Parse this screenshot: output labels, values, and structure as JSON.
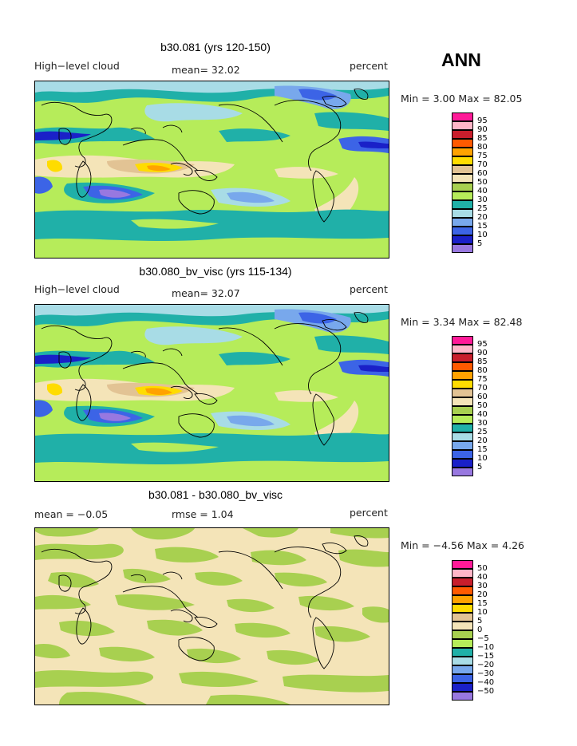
{
  "season": "ANN",
  "panels": [
    {
      "title": "b30.081 (yrs 120-150)",
      "left_label": "High−level cloud",
      "center_label": "mean=  32.02",
      "right_label": "percent",
      "minmax": "Min =    3.00 Max =   82.05",
      "colorbar": {
        "labels": [
          "95",
          "90",
          "85",
          "80",
          "75",
          "70",
          "60",
          "50",
          "40",
          "30",
          "25",
          "20",
          "15",
          "10",
          "5"
        ],
        "colors": [
          "#ff1a98",
          "#ffb6c8",
          "#c81e2c",
          "#ff5a00",
          "#ffa200",
          "#ffdc00",
          "#e2c394",
          "#f4e4b8",
          "#a8d050",
          "#b6ec5a",
          "#20b0a8",
          "#a8dce6",
          "#78a8ec",
          "#3c64e6",
          "#1a20c8",
          "#9878e0"
        ]
      }
    },
    {
      "title": "b30.080_bv_visc (yrs 115-134)",
      "left_label": "High−level cloud",
      "center_label": "mean=  32.07",
      "right_label": "percent",
      "minmax": "Min =    3.34 Max =   82.48",
      "colorbar": {
        "labels": [
          "95",
          "90",
          "85",
          "80",
          "75",
          "70",
          "60",
          "50",
          "40",
          "30",
          "25",
          "20",
          "15",
          "10",
          "5"
        ],
        "colors": [
          "#ff1a98",
          "#ffb6c8",
          "#c81e2c",
          "#ff5a00",
          "#ffa200",
          "#ffdc00",
          "#e2c394",
          "#f4e4b8",
          "#a8d050",
          "#b6ec5a",
          "#20b0a8",
          "#a8dce6",
          "#78a8ec",
          "#3c64e6",
          "#1a20c8",
          "#9878e0"
        ]
      }
    },
    {
      "title": "b30.081 - b30.080_bv_visc",
      "left_label": "mean =   −0.05",
      "center_label": "rmse =    1.04",
      "right_label": "percent",
      "minmax": "Min =  −4.56 Max =    4.26",
      "colorbar": {
        "labels": [
          "50",
          "40",
          "30",
          "20",
          "15",
          "10",
          "5",
          "0",
          "−5",
          "−10",
          "−15",
          "−20",
          "−30",
          "−40",
          "−50"
        ],
        "colors": [
          "#ff1a98",
          "#ffb6c8",
          "#c81e2c",
          "#ff5a00",
          "#ffa200",
          "#ffdc00",
          "#e2c394",
          "#f4e4b8",
          "#a8d050",
          "#b6ec5a",
          "#20b0a8",
          "#a8dce6",
          "#78a8ec",
          "#3c64e6",
          "#1a20c8",
          "#9878e0"
        ]
      }
    }
  ]
}
